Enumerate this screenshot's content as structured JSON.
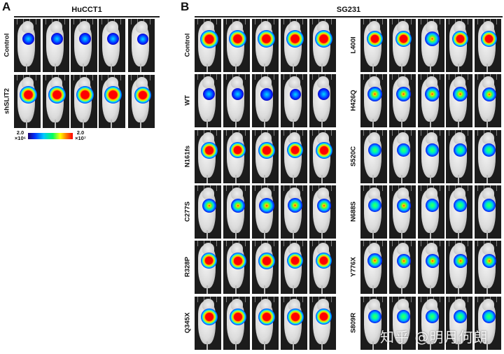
{
  "figure": {
    "panel_a": {
      "letter": "A",
      "title": "HuCCT1",
      "rows": [
        {
          "label": "Control",
          "intensity": [
            0.25,
            0.3,
            0.25,
            0.25,
            0.2
          ]
        },
        {
          "label": "shSLIT2",
          "intensity": [
            0.85,
            0.85,
            0.85,
            0.9,
            0.8
          ]
        }
      ],
      "colorbar": {
        "min_value": "2.0",
        "min_exp": "×10⁶",
        "max_value": "2.0",
        "max_exp": "×10⁷"
      }
    },
    "panel_b": {
      "letter": "B",
      "title": "SG231",
      "left_rows": [
        {
          "label": "Control",
          "intensity": [
            0.95,
            0.9,
            0.9,
            0.85,
            0.85
          ]
        },
        {
          "label": "WT",
          "intensity": [
            0.3,
            0.3,
            0.35,
            0.2,
            0.25
          ]
        },
        {
          "label": "N161fs",
          "intensity": [
            0.8,
            0.75,
            0.8,
            0.75,
            0.8
          ]
        },
        {
          "label": "C277S",
          "intensity": [
            0.5,
            0.5,
            0.65,
            0.55,
            0.5
          ]
        },
        {
          "label": "R328P",
          "intensity": [
            0.75,
            0.8,
            0.8,
            0.7,
            0.7
          ]
        },
        {
          "label": "Q345X",
          "intensity": [
            0.8,
            0.8,
            0.8,
            0.8,
            0.75
          ]
        }
      ],
      "right_rows": [
        {
          "label": "L400I",
          "intensity": [
            0.7,
            0.7,
            0.6,
            0.7,
            0.75
          ]
        },
        {
          "label": "H426Q",
          "intensity": [
            0.6,
            0.55,
            0.6,
            0.6,
            0.5
          ]
        },
        {
          "label": "S520C",
          "intensity": [
            0.45,
            0.45,
            0.45,
            0.4,
            0.45
          ]
        },
        {
          "label": "N688S",
          "intensity": [
            0.45,
            0.5,
            0.4,
            0.4,
            0.45
          ]
        },
        {
          "label": "Y776X",
          "intensity": [
            0.55,
            0.5,
            0.5,
            0.5,
            0.5
          ]
        },
        {
          "label": "S809R",
          "intensity": [
            0.45,
            0.4,
            0.45,
            0.4,
            0.45
          ]
        }
      ]
    },
    "watermark": "知乎 @明月何朗"
  }
}
